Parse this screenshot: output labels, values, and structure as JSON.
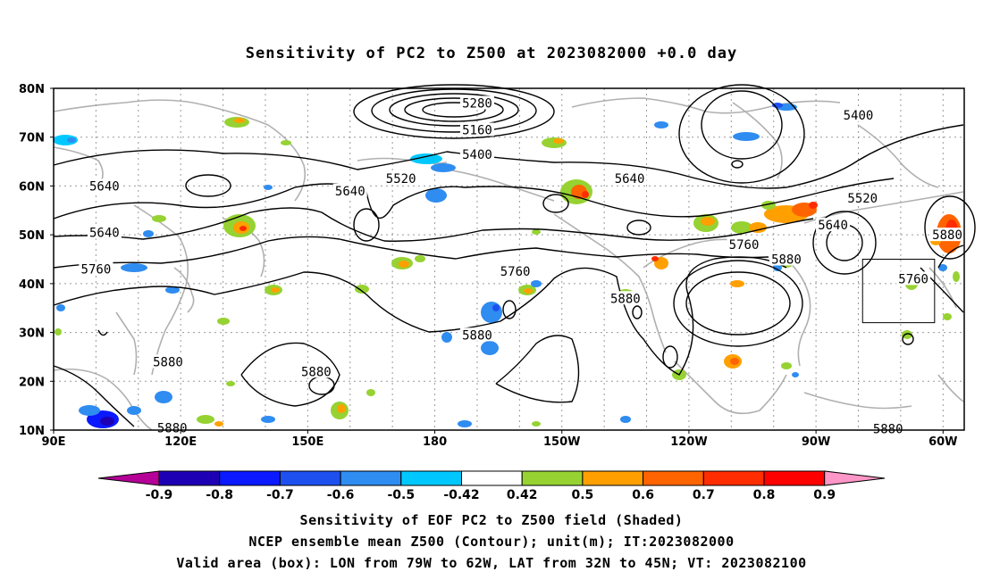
{
  "title": "Sensitivity of PC2 to Z500 at 2023082000 +0.0 day",
  "map": {
    "lon_range": [
      90,
      305
    ],
    "lat_range": [
      10,
      80
    ],
    "lat_ticks": [
      {
        "lat": 80,
        "label": "80N"
      },
      {
        "lat": 70,
        "label": "70N"
      },
      {
        "lat": 60,
        "label": "60N"
      },
      {
        "lat": 50,
        "label": "50N"
      },
      {
        "lat": 40,
        "label": "40N"
      },
      {
        "lat": 30,
        "label": "30N"
      },
      {
        "lat": 20,
        "label": "20N"
      },
      {
        "lat": 10,
        "label": "10N"
      }
    ],
    "lon_ticks": [
      {
        "lon": 90,
        "label": "90E"
      },
      {
        "lon": 120,
        "label": "120E"
      },
      {
        "lon": 150,
        "label": "150E"
      },
      {
        "lon": 180,
        "label": "180"
      },
      {
        "lon": 210,
        "label": "150W"
      },
      {
        "lon": 240,
        "label": "120W"
      },
      {
        "lon": 270,
        "label": "90W"
      },
      {
        "lon": 300,
        "label": "60W"
      }
    ],
    "grid_lons": [
      100,
      110,
      120,
      130,
      140,
      150,
      160,
      170,
      180,
      190,
      200,
      210,
      220,
      230,
      240,
      250,
      260,
      270,
      280,
      290,
      300
    ],
    "grid_lats": [
      20,
      30,
      40,
      50,
      60,
      70
    ],
    "valid_box": {
      "lon_min": 281,
      "lon_max": 298,
      "lat_min": 32,
      "lat_max": 45
    },
    "contour_labels": [
      {
        "text": "5280",
        "lon": 190,
        "lat": 77
      },
      {
        "text": "5160",
        "lon": 190,
        "lat": 71.5
      },
      {
        "text": "5400",
        "lon": 190,
        "lat": 66.5
      },
      {
        "text": "5400",
        "lon": 280,
        "lat": 74.5
      },
      {
        "text": "5520",
        "lon": 172,
        "lat": 61.5
      },
      {
        "text": "5520",
        "lon": 281,
        "lat": 57.5
      },
      {
        "text": "5640",
        "lon": 102,
        "lat": 60
      },
      {
        "text": "5640",
        "lon": 160,
        "lat": 59
      },
      {
        "text": "5640",
        "lon": 226,
        "lat": 61.5
      },
      {
        "text": "5640",
        "lon": 102,
        "lat": 50.5
      },
      {
        "text": "5640",
        "lon": 274,
        "lat": 52
      },
      {
        "text": "5760",
        "lon": 100,
        "lat": 43
      },
      {
        "text": "5760",
        "lon": 199,
        "lat": 42.5
      },
      {
        "text": "5760",
        "lon": 253,
        "lat": 48
      },
      {
        "text": "5760",
        "lon": 293,
        "lat": 41
      },
      {
        "text": "5880",
        "lon": 263,
        "lat": 45
      },
      {
        "text": "5880",
        "lon": 301,
        "lat": 50
      },
      {
        "text": "5880",
        "lon": 225,
        "lat": 37
      },
      {
        "text": "5880",
        "lon": 190,
        "lat": 29.5
      },
      {
        "text": "5880",
        "lon": 117,
        "lat": 24
      },
      {
        "text": "5880",
        "lon": 152,
        "lat": 22
      },
      {
        "text": "5880",
        "lon": 118,
        "lat": 10.5
      },
      {
        "text": "5880",
        "lon": 287,
        "lat": 10.3
      }
    ]
  },
  "colorbar": {
    "labels": [
      "-0.9",
      "-0.8",
      "-0.7",
      "-0.6",
      "-0.5",
      "-0.42",
      "0.42",
      "0.5",
      "0.6",
      "0.7",
      "0.8",
      "0.9"
    ],
    "colors": [
      "#b40096",
      "#1e00b4",
      "#0a19ff",
      "#1e50f0",
      "#2f8cf0",
      "#00c8ff",
      "#ffffff",
      "#96d232",
      "#ffa000",
      "#ff6400",
      "#ff2d00",
      "#ff0000",
      "#ff96c8"
    ]
  },
  "footer": {
    "line1": "Sensitivity of EOF PC2 to Z500 field (Shaded)",
    "line2": "NCEP ensemble mean Z500 (Contour); unit(m); IT:2023082000",
    "line3": "Valid area (box): LON from 79W to 62W, LAT from 32N to 45N; VT: 2023082100"
  }
}
